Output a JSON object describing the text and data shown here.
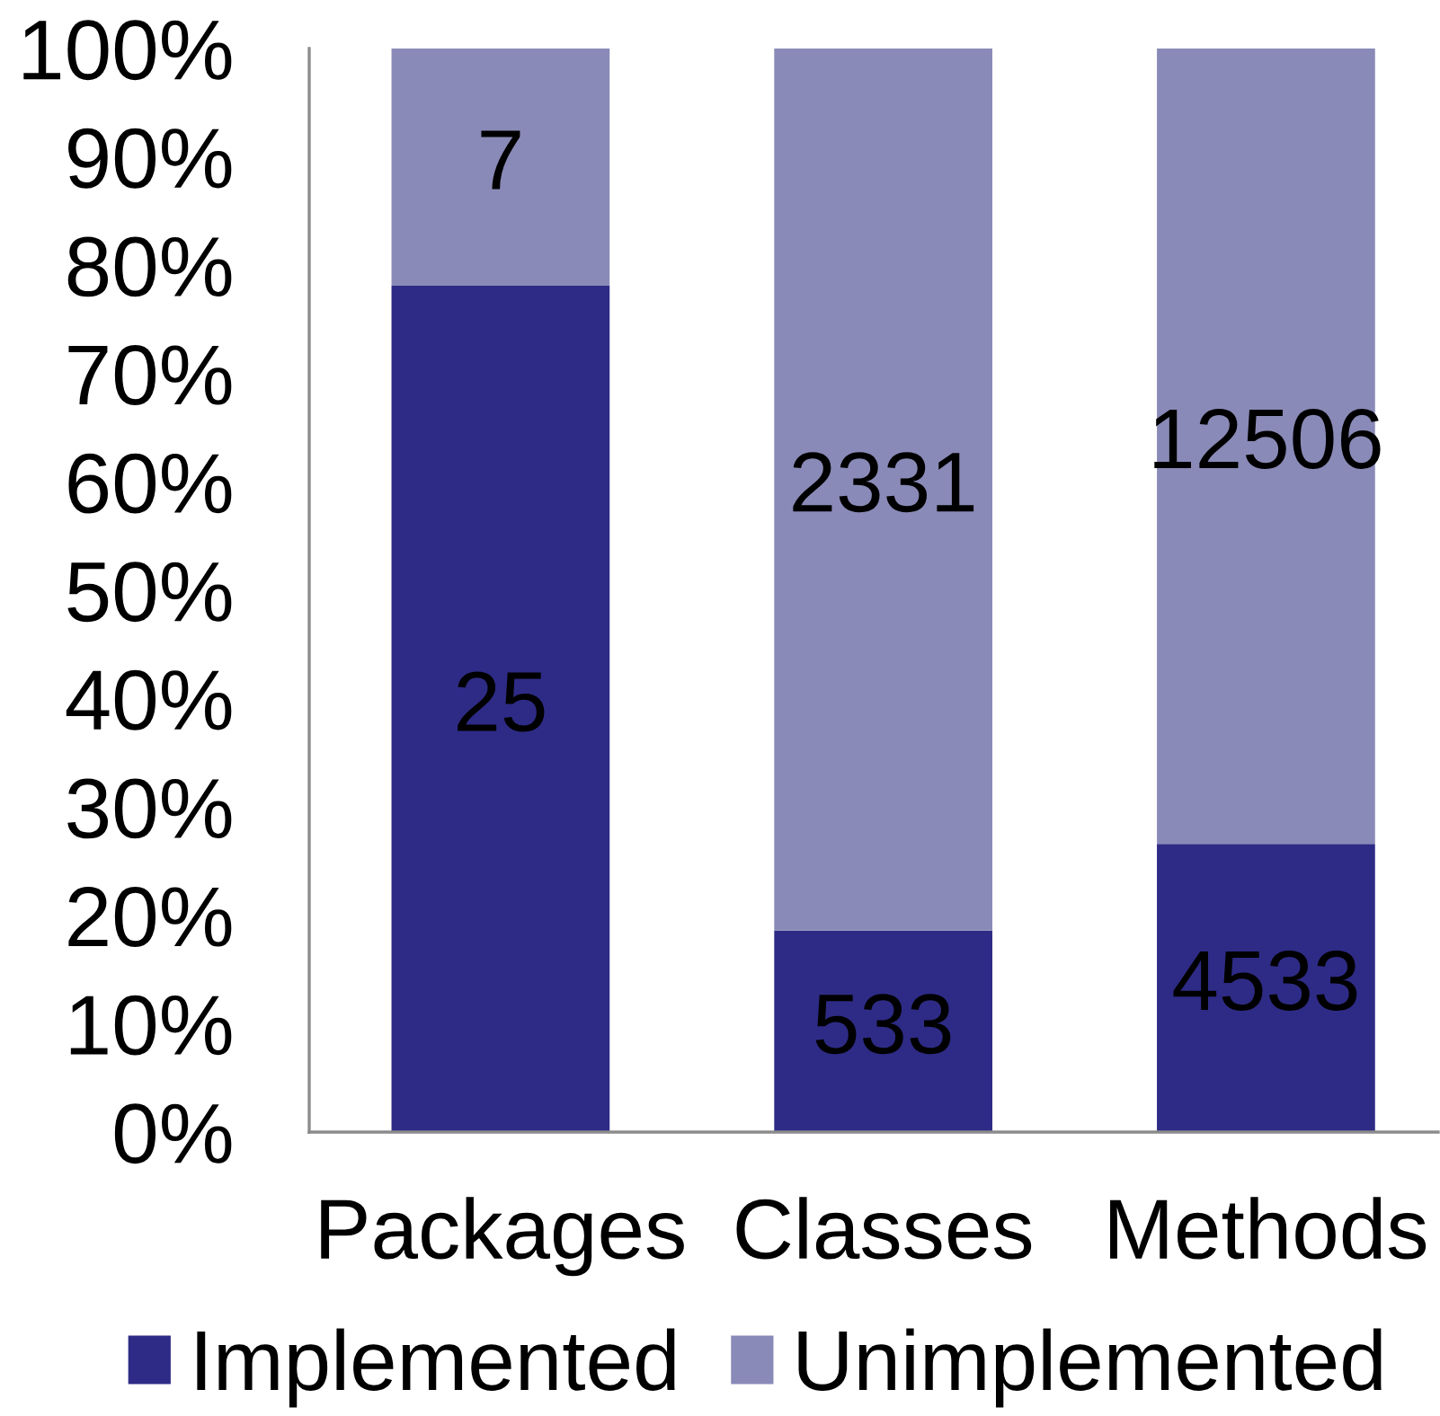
{
  "chart_data": {
    "type": "bar",
    "stacked": true,
    "categories": [
      "Packages",
      "Classes",
      "Methods"
    ],
    "series": [
      {
        "name": "Implemented",
        "color": "#2e2b86",
        "values": [
          78.1,
          18.6,
          26.6
        ]
      },
      {
        "name": "Unimplemented",
        "color": "#8a8ab8",
        "values": [
          21.9,
          81.4,
          73.4
        ]
      }
    ],
    "annotations": [
      "25",
      "533",
      "4533",
      "7",
      "2331",
      "12506"
    ],
    "ylim": [
      0,
      100
    ],
    "yticks": [
      {
        "value": 0,
        "label": "0%"
      },
      {
        "value": 10,
        "label": "10%"
      },
      {
        "value": 20,
        "label": "20%"
      },
      {
        "value": 30,
        "label": "30%"
      },
      {
        "value": 40,
        "label": "40%"
      },
      {
        "value": 50,
        "label": "50%"
      },
      {
        "value": 60,
        "label": "60%"
      },
      {
        "value": 70,
        "label": "70%"
      },
      {
        "value": 80,
        "label": "80%"
      },
      {
        "value": 90,
        "label": "90%"
      },
      {
        "value": 100,
        "label": "100%"
      }
    ],
    "legend": "bottom"
  }
}
